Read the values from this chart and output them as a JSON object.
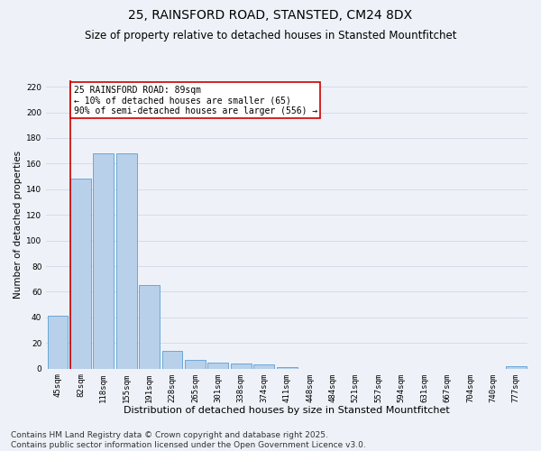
{
  "title": "25, RAINSFORD ROAD, STANSTED, CM24 8DX",
  "subtitle": "Size of property relative to detached houses in Stansted Mountfitchet",
  "xlabel": "Distribution of detached houses by size in Stansted Mountfitchet",
  "ylabel": "Number of detached properties",
  "categories": [
    "45sqm",
    "82sqm",
    "118sqm",
    "155sqm",
    "191sqm",
    "228sqm",
    "265sqm",
    "301sqm",
    "338sqm",
    "374sqm",
    "411sqm",
    "448sqm",
    "484sqm",
    "521sqm",
    "557sqm",
    "594sqm",
    "631sqm",
    "667sqm",
    "704sqm",
    "740sqm",
    "777sqm"
  ],
  "values": [
    41,
    148,
    168,
    168,
    65,
    14,
    7,
    5,
    4,
    3,
    1,
    0,
    0,
    0,
    0,
    0,
    0,
    0,
    0,
    0,
    2
  ],
  "bar_color": "#b8d0ea",
  "bar_edge_color": "#5a9fd4",
  "vline_x_index": 1,
  "vline_color": "#cc0000",
  "annotation_text": "25 RAINSFORD ROAD: 89sqm\n← 10% of detached houses are smaller (65)\n90% of semi-detached houses are larger (556) →",
  "annotation_box_facecolor": "#ffffff",
  "annotation_box_edgecolor": "#cc0000",
  "ylim": [
    0,
    225
  ],
  "yticks": [
    0,
    20,
    40,
    60,
    80,
    100,
    120,
    140,
    160,
    180,
    200,
    220
  ],
  "grid_color": "#d0d8e8",
  "bg_color": "#eef2f8",
  "footnote": "Contains HM Land Registry data © Crown copyright and database right 2025.\nContains public sector information licensed under the Open Government Licence v3.0.",
  "title_fontsize": 10,
  "subtitle_fontsize": 8.5,
  "xlabel_fontsize": 8,
  "ylabel_fontsize": 7.5,
  "tick_fontsize": 6.5,
  "annotation_fontsize": 7,
  "footnote_fontsize": 6.5
}
